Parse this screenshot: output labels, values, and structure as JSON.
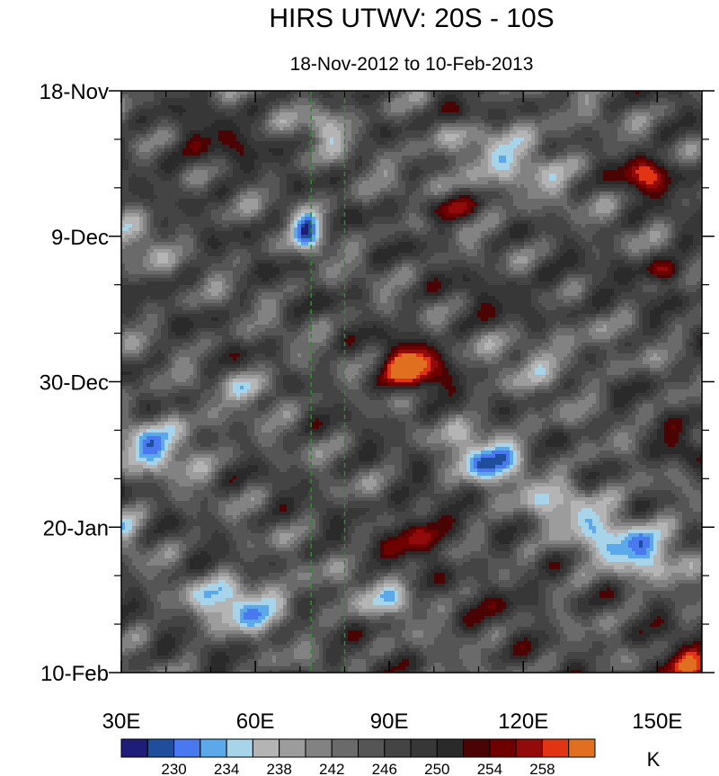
{
  "chart_data": {
    "type": "heatmap",
    "title": "HIRS UTWV: 20S - 10S",
    "subtitle": "18-Nov-2012 to 10-Feb-2013",
    "x_axis": {
      "range": [
        30,
        160
      ],
      "ticks": [
        30,
        60,
        90,
        120,
        150
      ],
      "tick_labels": [
        "30E",
        "60E",
        "90E",
        "120E",
        "150E"
      ],
      "minor_ticks": [
        40,
        50,
        70,
        80,
        100,
        110,
        130,
        140
      ]
    },
    "y_axis": {
      "range_days": [
        0,
        84
      ],
      "reversed": true,
      "ticks": [
        0,
        21,
        42,
        63,
        84
      ],
      "tick_labels": [
        "18-Nov",
        "9-Dec",
        "30-Dec",
        "20-Jan",
        "10-Feb"
      ],
      "minor_ticks": [
        7,
        14,
        28,
        35,
        49,
        56,
        70,
        77
      ]
    },
    "reference_lines": [
      {
        "lon": 72.5,
        "style": "dashed",
        "color": "#2e8b2e"
      },
      {
        "lon": 80,
        "style": "dashed",
        "color": "#2e8b2e"
      }
    ],
    "colorbar": {
      "unit": "K",
      "colors": [
        "#1e1e78",
        "#1f4f9c",
        "#4a78f0",
        "#5ba8ea",
        "#a8d4ea",
        "#b4b4b4",
        "#9c9c9c",
        "#828282",
        "#6a6a6a",
        "#555555",
        "#444444",
        "#373737",
        "#2a2a2a",
        "#4a0404",
        "#6e0000",
        "#930a0a",
        "#e03412",
        "#e07020"
      ],
      "labels": [
        "230",
        "234",
        "238",
        "242",
        "246",
        "250",
        "254",
        "258"
      ],
      "label_positions": [
        2,
        4,
        6,
        8,
        10,
        12,
        14,
        16
      ]
    },
    "field_features": [
      {
        "lon": 72,
        "day": 20,
        "sigma_lon": 2.5,
        "sigma_day": 2.5,
        "amp": -14
      },
      {
        "lon": 76,
        "day": 5,
        "sigma_lon": 4,
        "sigma_day": 2,
        "amp": -9
      },
      {
        "lon": 95,
        "day": 40,
        "sigma_lon": 5,
        "sigma_day": 2.5,
        "amp": 16
      },
      {
        "lon": 103,
        "day": 17,
        "sigma_lon": 5,
        "sigma_day": 1.5,
        "amp": 11
      },
      {
        "lon": 115,
        "day": 10,
        "sigma_lon": 12,
        "sigma_day": 5,
        "amp": -7
      },
      {
        "lon": 106,
        "day": 3,
        "sigma_lon": 4,
        "sigma_day": 1.5,
        "amp": 10
      },
      {
        "lon": 148,
        "day": 12,
        "sigma_lon": 5,
        "sigma_day": 2,
        "amp": 12
      },
      {
        "lon": 152,
        "day": 26,
        "sigma_lon": 4,
        "sigma_day": 1.2,
        "amp": 10
      },
      {
        "lon": 156,
        "day": 84,
        "sigma_lon": 5,
        "sigma_day": 3,
        "amp": 12
      },
      {
        "lon": 112,
        "day": 53,
        "sigma_lon": 6,
        "sigma_day": 3,
        "amp": -13
      },
      {
        "lon": 145,
        "day": 66,
        "sigma_lon": 9,
        "sigma_day": 3,
        "amp": -12
      },
      {
        "lon": 130,
        "day": 60,
        "sigma_lon": 8,
        "sigma_day": 3,
        "amp": -8
      },
      {
        "lon": 57,
        "day": 74,
        "sigma_lon": 8,
        "sigma_day": 2.5,
        "amp": -13
      },
      {
        "lon": 38,
        "day": 51,
        "sigma_lon": 8,
        "sigma_day": 3,
        "amp": -11
      },
      {
        "lon": 33,
        "day": 22,
        "sigma_lon": 4,
        "sigma_day": 2.5,
        "amp": -7
      },
      {
        "lon": 60,
        "day": 43,
        "sigma_lon": 4,
        "sigma_day": 1.5,
        "amp": -10
      },
      {
        "lon": 32,
        "day": 63,
        "sigma_lon": 3,
        "sigma_day": 2,
        "amp": -8
      },
      {
        "lon": 97,
        "day": 64,
        "sigma_lon": 5,
        "sigma_day": 3,
        "amp": 10
      },
      {
        "lon": 117,
        "day": 73,
        "sigma_lon": 6,
        "sigma_day": 2,
        "amp": 5
      },
      {
        "lon": 155,
        "day": 52,
        "sigma_lon": 5,
        "sigma_day": 1.5,
        "amp": 8
      },
      {
        "lon": 90,
        "day": 73,
        "sigma_lon": 6,
        "sigma_day": 2,
        "amp": -8
      },
      {
        "lon": 125,
        "day": 38,
        "sigma_lon": 8,
        "sigma_day": 3,
        "amp": -6
      },
      {
        "lon": 50,
        "day": 8,
        "sigma_lon": 8,
        "sigma_day": 3,
        "amp": 5
      },
      {
        "lon": 120,
        "day": 30,
        "sigma_lon": 12,
        "sigma_day": 3,
        "amp": 3
      }
    ]
  }
}
